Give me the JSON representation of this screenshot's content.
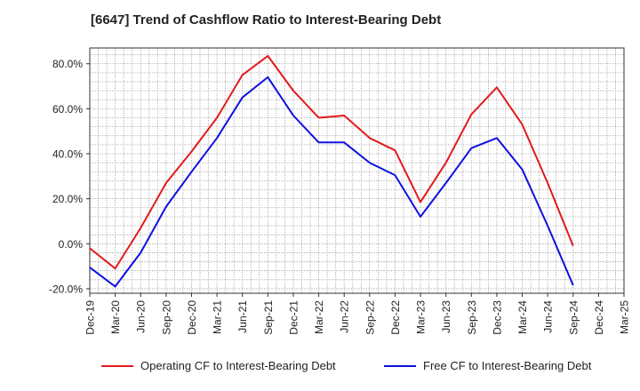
{
  "title": "[6647]  Trend of Cashflow Ratio to Interest-Bearing Debt",
  "chart_data": {
    "type": "line",
    "categories": [
      "Dec-19",
      "Mar-20",
      "Jun-20",
      "Sep-20",
      "Dec-20",
      "Mar-21",
      "Jun-21",
      "Sep-21",
      "Dec-21",
      "Mar-22",
      "Jun-22",
      "Sep-22",
      "Dec-22",
      "Mar-23",
      "Jun-23",
      "Sep-23",
      "Dec-23",
      "Mar-24",
      "Jun-24",
      "Sep-24",
      "Dec-24",
      "Mar-25"
    ],
    "series": [
      {
        "name": "Operating CF to Interest-Bearing Debt",
        "color": "#e31a1c",
        "values": [
          -2.0,
          -11.0,
          7.0,
          27.0,
          41.0,
          56.0,
          75.0,
          83.5,
          68.0,
          56.0,
          57.0,
          47.0,
          41.5,
          18.5,
          36.0,
          57.5,
          69.5,
          53.0,
          27.0,
          -1.0,
          null,
          null
        ]
      },
      {
        "name": "Free CF to Interest-Bearing Debt",
        "color": "#1010e0",
        "values": [
          -10.5,
          -19.0,
          -4.0,
          16.5,
          32.0,
          47.0,
          65.0,
          74.0,
          57.0,
          45.0,
          45.0,
          36.0,
          30.5,
          12.0,
          27.0,
          42.5,
          47.0,
          33.0,
          8.0,
          -18.5,
          null,
          null
        ]
      }
    ],
    "y_ticks": [
      "80.0%",
      "60.0%",
      "40.0%",
      "20.0%",
      "0.0%",
      "-20.0%"
    ],
    "y_tick_values": [
      80,
      60,
      40,
      20,
      0,
      -20
    ],
    "ylim": [
      -22,
      87
    ],
    "xlabel": "",
    "ylabel": "",
    "grid": true,
    "legend_position": "bottom"
  }
}
